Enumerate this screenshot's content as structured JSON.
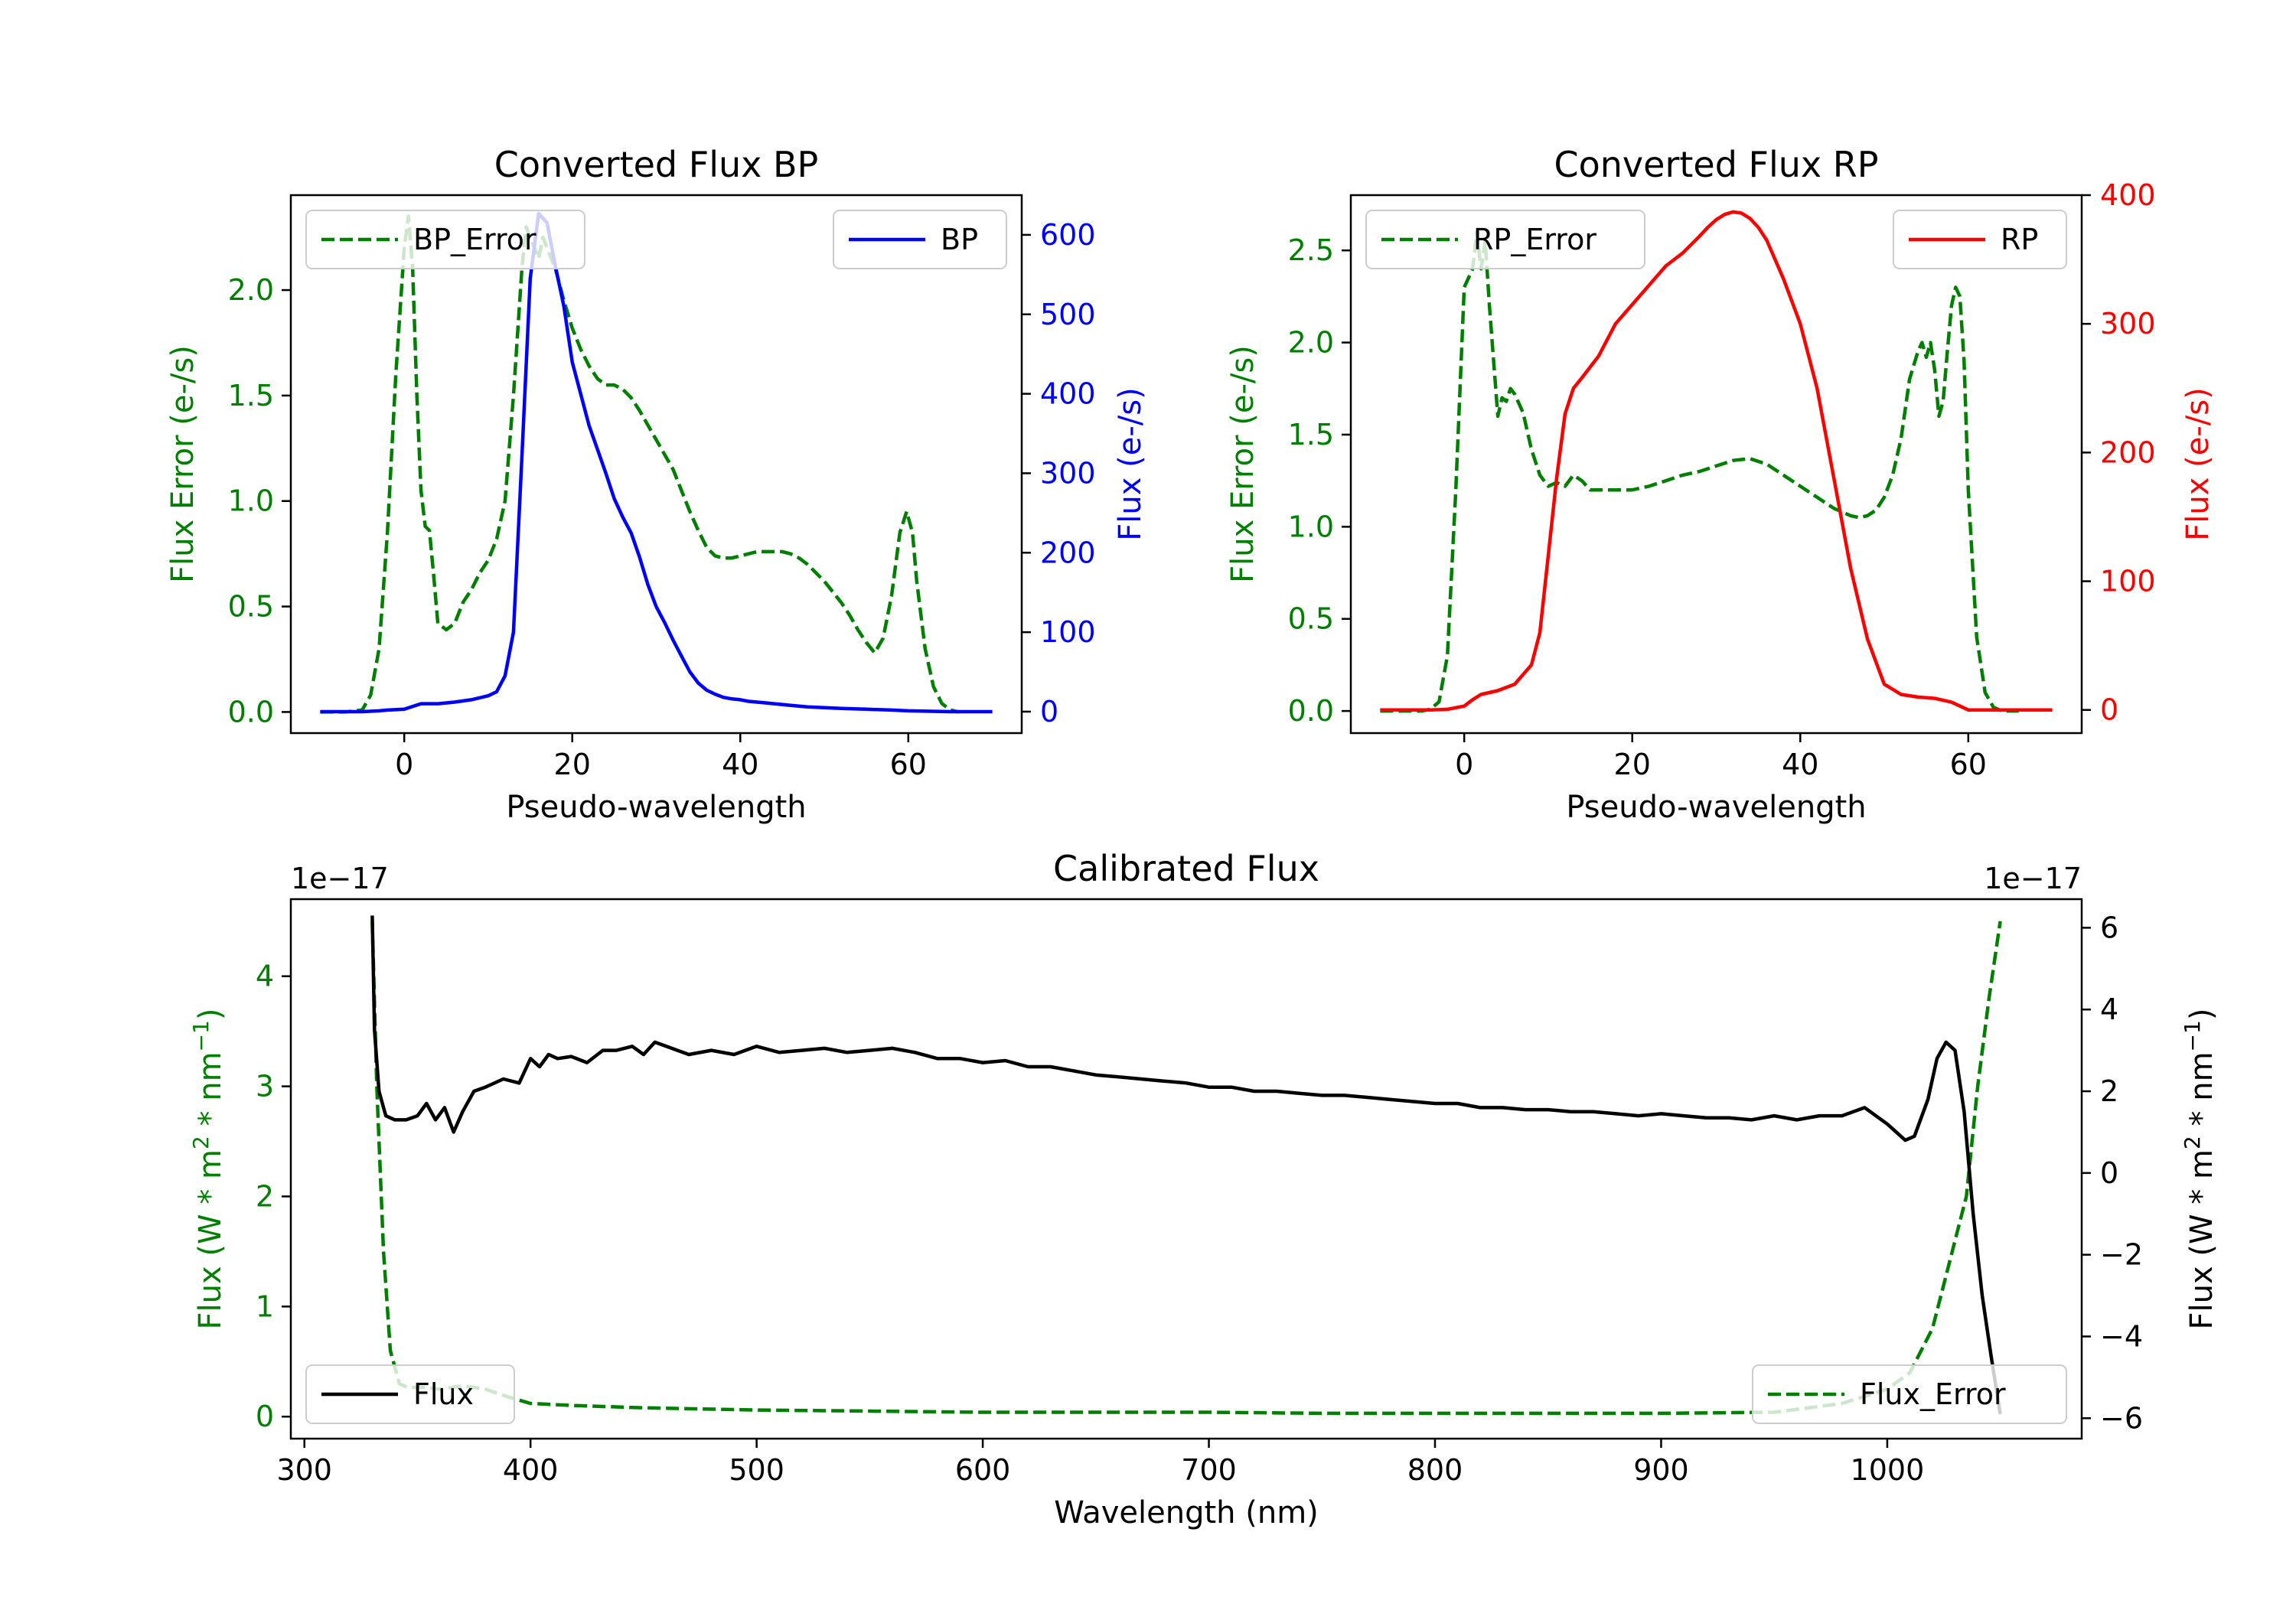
{
  "chart_data": [
    {
      "type": "line",
      "title": "Converted Flux BP",
      "xlabel": "Pseudo-wavelength",
      "ylabel_left": "Flux Error (e-/s)",
      "ylabel_right": "Flux (e-/s)",
      "xlim": [
        -13.5,
        73.5
      ],
      "ylim_left": [
        -0.1,
        2.45
      ],
      "ylim_right": [
        -27,
        650
      ],
      "xticks": [
        "0",
        "20",
        "40",
        "60"
      ],
      "xtick_values": [
        0,
        20,
        40,
        60
      ],
      "yticks_left": [
        "0.0",
        "0.5",
        "1.0",
        "1.5",
        "2.0"
      ],
      "ytick_values_left": [
        0,
        0.5,
        1.0,
        1.5,
        2.0
      ],
      "yticks_right": [
        "0",
        "100",
        "200",
        "300",
        "400",
        "500",
        "600"
      ],
      "ytick_values_right": [
        0,
        100,
        200,
        300,
        400,
        500,
        600
      ],
      "series": [
        {
          "name": "BP_Error",
          "axis": "left",
          "color": "#008000",
          "dash": true,
          "x": [
            -10,
            -7,
            -5,
            -4,
            -3,
            -2,
            -1,
            0,
            0.5,
            1,
            1.5,
            2,
            2.5,
            3,
            3.5,
            4,
            5,
            6,
            7,
            8,
            9,
            10,
            11,
            12,
            13,
            14,
            14.5,
            15,
            15.5,
            16,
            16.5,
            17,
            18,
            19,
            20,
            21,
            22,
            23,
            24,
            25,
            26,
            27,
            28,
            29,
            30,
            31,
            32,
            33,
            34,
            35,
            36,
            37,
            38,
            39,
            40,
            41,
            42,
            43,
            44,
            45,
            46,
            47,
            48,
            49,
            50,
            51,
            52,
            53,
            54,
            55,
            56,
            57,
            58,
            59,
            59.8,
            60.5,
            61,
            62,
            63,
            64,
            65,
            66
          ],
          "y": [
            0,
            0,
            0.01,
            0.08,
            0.3,
            0.85,
            1.6,
            2.2,
            2.35,
            2.1,
            1.5,
            1.05,
            0.88,
            0.86,
            0.65,
            0.42,
            0.39,
            0.42,
            0.52,
            0.58,
            0.66,
            0.72,
            0.82,
            1.0,
            1.5,
            2.1,
            2.3,
            2.25,
            2.2,
            2.15,
            2.25,
            2.2,
            2.1,
            1.95,
            1.82,
            1.72,
            1.64,
            1.58,
            1.55,
            1.55,
            1.53,
            1.49,
            1.43,
            1.36,
            1.29,
            1.22,
            1.15,
            1.05,
            0.95,
            0.86,
            0.78,
            0.74,
            0.73,
            0.73,
            0.74,
            0.75,
            0.76,
            0.76,
            0.76,
            0.76,
            0.75,
            0.73,
            0.7,
            0.66,
            0.62,
            0.57,
            0.52,
            0.46,
            0.39,
            0.33,
            0.28,
            0.35,
            0.55,
            0.85,
            0.95,
            0.85,
            0.62,
            0.3,
            0.12,
            0.04,
            0.01,
            0
          ]
        },
        {
          "name": "BP",
          "axis": "right",
          "color": "#0000ff",
          "dash": false,
          "x": [
            -10,
            -5,
            -3,
            -2,
            0,
            2,
            4,
            6,
            8,
            10,
            11,
            12,
            13,
            14,
            15,
            16,
            17,
            18,
            19,
            20,
            21,
            22,
            23,
            24,
            25,
            26,
            27,
            28,
            29,
            30,
            31,
            32,
            33,
            34,
            35,
            36,
            37,
            38,
            39,
            40,
            41,
            42,
            43,
            44,
            46,
            48,
            50,
            52,
            55,
            58,
            60,
            65,
            70
          ],
          "y": [
            0,
            0,
            1,
            2,
            3,
            10,
            10,
            12,
            15,
            20,
            25,
            45,
            100,
            320,
            545,
            627,
            615,
            560,
            510,
            440,
            400,
            360,
            330,
            300,
            268,
            245,
            225,
            195,
            160,
            132,
            112,
            90,
            70,
            50,
            36,
            27,
            22,
            18,
            16,
            15,
            13,
            12,
            11,
            10,
            8,
            6,
            5,
            4,
            3,
            2,
            1,
            0,
            0
          ]
        }
      ],
      "legend": [
        {
          "label": "BP_Error",
          "position": "top-left"
        },
        {
          "label": "BP",
          "position": "top-right"
        }
      ]
    },
    {
      "type": "line",
      "title": "Converted Flux RP",
      "xlabel": "Pseudo-wavelength",
      "ylabel_left": "Flux Error (e-/s)",
      "ylabel_right": "Flux (e-/s)",
      "xlim": [
        -13.5,
        73.5
      ],
      "ylim_left": [
        -0.12,
        2.8
      ],
      "ylim_right": [
        -18,
        400
      ],
      "xticks": [
        "0",
        "20",
        "40",
        "60"
      ],
      "xtick_values": [
        0,
        20,
        40,
        60
      ],
      "yticks_left": [
        "0.0",
        "0.5",
        "1.0",
        "1.5",
        "2.0",
        "2.5"
      ],
      "ytick_values_left": [
        0,
        0.5,
        1.0,
        1.5,
        2.0,
        2.5
      ],
      "yticks_right": [
        "0",
        "100",
        "200",
        "300",
        "400"
      ],
      "ytick_values_right": [
        0,
        100,
        200,
        300,
        400
      ],
      "series": [
        {
          "name": "RP_Error",
          "axis": "left",
          "color": "#008000",
          "dash": true,
          "x": [
            -10,
            -5,
            -4,
            -3,
            -2,
            -1,
            0,
            1,
            1.5,
            2,
            2.5,
            3,
            3.5,
            4,
            4.5,
            5,
            5.5,
            6,
            7,
            8,
            9,
            10,
            11,
            12,
            13,
            14,
            15,
            16,
            17,
            18,
            20,
            22,
            24,
            26,
            28,
            30,
            32,
            34,
            36,
            38,
            40,
            42,
            44,
            45,
            46,
            47,
            48,
            49,
            50,
            51,
            52,
            53,
            54,
            54.5,
            55,
            55.5,
            56,
            56.5,
            57,
            57.5,
            58,
            58.5,
            59,
            59.5,
            60,
            61,
            62,
            63,
            64,
            65,
            66
          ],
          "y": [
            0,
            0,
            0.01,
            0.05,
            0.3,
            1.2,
            2.3,
            2.4,
            2.6,
            2.4,
            2.55,
            2.2,
            1.9,
            1.6,
            1.7,
            1.68,
            1.75,
            1.72,
            1.62,
            1.42,
            1.28,
            1.22,
            1.24,
            1.22,
            1.28,
            1.25,
            1.2,
            1.2,
            1.2,
            1.2,
            1.2,
            1.22,
            1.25,
            1.28,
            1.3,
            1.33,
            1.36,
            1.37,
            1.34,
            1.28,
            1.22,
            1.16,
            1.1,
            1.08,
            1.06,
            1.05,
            1.06,
            1.09,
            1.16,
            1.28,
            1.48,
            1.8,
            1.95,
            2.0,
            1.92,
            2.0,
            1.85,
            1.6,
            1.68,
            1.95,
            2.2,
            2.3,
            2.25,
            1.9,
            1.2,
            0.4,
            0.1,
            0.02,
            0,
            0,
            0
          ]
        },
        {
          "name": "RP",
          "axis": "right",
          "color": "#ff0000",
          "dash": false,
          "x": [
            -10,
            -4,
            -2,
            0,
            1,
            2,
            4,
            6,
            8,
            9,
            10,
            11,
            12,
            13,
            14,
            16,
            18,
            20,
            22,
            24,
            26,
            28,
            29,
            30,
            31,
            32,
            33,
            34,
            35,
            36,
            38,
            40,
            42,
            44,
            46,
            48,
            50,
            52,
            54,
            56,
            58,
            60,
            65,
            70
          ],
          "y": [
            0,
            0,
            0.5,
            3,
            8,
            12,
            15,
            20,
            35,
            60,
            120,
            180,
            230,
            250,
            258,
            275,
            300,
            315,
            330,
            345,
            355,
            368,
            375,
            381,
            385,
            387,
            386,
            382,
            375,
            365,
            335,
            300,
            250,
            180,
            110,
            55,
            20,
            12,
            10,
            9,
            6,
            0,
            0,
            0
          ]
        }
      ],
      "legend": [
        {
          "label": "RP_Error",
          "position": "top-left"
        },
        {
          "label": "RP",
          "position": "top-right"
        }
      ]
    },
    {
      "type": "line",
      "title": "Calibrated Flux",
      "xlabel": "Wavelength (nm)",
      "ylabel_left": "Flux (W * m",
      "ylabel_right": "Flux (W * m",
      "ylabel_mid": " * nm",
      "ylabel_sup2": "2",
      "ylabel_sup_neg1": "−1",
      "ylabel_close": ")",
      "offset_left": "1e−17",
      "offset_right": "1e−17",
      "xlim": [
        294,
        1086
      ],
      "ylim_left": [
        -0.2,
        4.7
      ],
      "ylim_right": [
        -6.5,
        6.7
      ],
      "xticks": [
        "300",
        "400",
        "500",
        "600",
        "700",
        "800",
        "900",
        "1000"
      ],
      "xtick_values": [
        300,
        400,
        500,
        600,
        700,
        800,
        900,
        1000
      ],
      "yticks_left": [
        "0",
        "1",
        "2",
        "3",
        "4"
      ],
      "ytick_values_left": [
        0,
        1,
        2,
        3,
        4
      ],
      "yticks_right": [
        "−6",
        "−4",
        "−2",
        "0",
        "2",
        "4",
        "6"
      ],
      "ytick_values_right": [
        -6,
        -4,
        -2,
        0,
        2,
        4,
        6
      ],
      "series": [
        {
          "name": "Flux_Error",
          "axis": "left",
          "color": "#008000",
          "dash": true,
          "x": [
            330,
            332,
            335,
            338,
            342,
            346,
            350,
            360,
            370,
            380,
            390,
            400,
            420,
            450,
            500,
            550,
            600,
            650,
            700,
            750,
            800,
            850,
            900,
            950,
            980,
            1000,
            1010,
            1020,
            1025,
            1030,
            1035,
            1040,
            1045,
            1050
          ],
          "y": [
            4.5,
            3.0,
            1.5,
            0.6,
            0.3,
            0.26,
            0.27,
            0.25,
            0.28,
            0.25,
            0.18,
            0.12,
            0.1,
            0.08,
            0.06,
            0.05,
            0.04,
            0.04,
            0.04,
            0.03,
            0.03,
            0.03,
            0.03,
            0.04,
            0.12,
            0.25,
            0.4,
            0.8,
            1.2,
            1.6,
            2.0,
            3.0,
            3.8,
            4.5
          ]
        },
        {
          "name": "Flux",
          "axis": "right",
          "color": "#000000",
          "dash": false,
          "x": [
            330,
            331,
            333,
            336,
            340,
            345,
            350,
            354,
            358,
            362,
            366,
            370,
            375,
            380,
            388,
            395,
            400,
            404,
            408,
            412,
            418,
            425,
            432,
            438,
            445,
            450,
            455,
            460,
            465,
            470,
            480,
            490,
            500,
            510,
            520,
            530,
            540,
            550,
            560,
            570,
            580,
            590,
            600,
            610,
            620,
            630,
            640,
            650,
            660,
            670,
            680,
            690,
            700,
            710,
            720,
            730,
            740,
            750,
            760,
            770,
            780,
            790,
            800,
            810,
            820,
            830,
            840,
            850,
            860,
            870,
            880,
            890,
            900,
            910,
            920,
            930,
            940,
            950,
            960,
            970,
            980,
            990,
            1000,
            1008,
            1012,
            1018,
            1022,
            1026,
            1030,
            1034,
            1038,
            1042,
            1046,
            1050
          ],
          "y": [
            6.3,
            3.5,
            2.0,
            1.4,
            1.3,
            1.3,
            1.4,
            1.7,
            1.3,
            1.6,
            1.0,
            1.5,
            2.0,
            2.1,
            2.3,
            2.2,
            2.8,
            2.6,
            2.9,
            2.8,
            2.85,
            2.7,
            3.0,
            3.0,
            3.1,
            2.9,
            3.2,
            3.1,
            3.0,
            2.9,
            3.0,
            2.9,
            3.1,
            2.95,
            3.0,
            3.05,
            2.95,
            3.0,
            3.05,
            2.95,
            2.8,
            2.8,
            2.7,
            2.75,
            2.6,
            2.6,
            2.5,
            2.4,
            2.35,
            2.3,
            2.25,
            2.2,
            2.1,
            2.1,
            2.0,
            2.0,
            1.95,
            1.9,
            1.9,
            1.85,
            1.8,
            1.75,
            1.7,
            1.7,
            1.6,
            1.6,
            1.55,
            1.55,
            1.5,
            1.5,
            1.45,
            1.4,
            1.45,
            1.4,
            1.35,
            1.35,
            1.3,
            1.4,
            1.3,
            1.4,
            1.4,
            1.6,
            1.2,
            0.8,
            0.9,
            1.8,
            2.8,
            3.2,
            3.0,
            1.5,
            -1.0,
            -3.0,
            -4.5,
            -5.9
          ]
        }
      ],
      "legend": [
        {
          "label": "Flux",
          "position": "bottom-left"
        },
        {
          "label": "Flux_Error",
          "position": "bottom-right"
        }
      ]
    }
  ]
}
